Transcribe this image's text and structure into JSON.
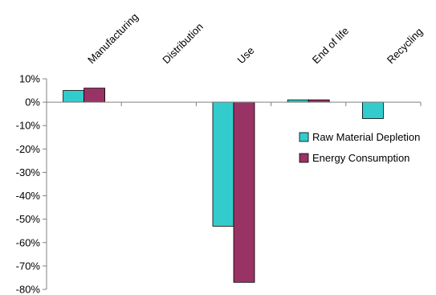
{
  "chart_data": {
    "type": "bar",
    "categories": [
      "Manufacturing",
      "Distribution",
      "Use",
      "End of life",
      "Recycling"
    ],
    "series": [
      {
        "name": "Raw Material Depletion",
        "color": "#33CCCC",
        "values": [
          5,
          0,
          -53,
          1,
          -7
        ]
      },
      {
        "name": "Energy Consumption",
        "color": "#993366",
        "values": [
          6,
          0,
          -77,
          1,
          0
        ]
      }
    ],
    "ylim": [
      -80,
      10
    ],
    "yticks": [
      "10%",
      "0%",
      "-10%",
      "-20%",
      "-30%",
      "-40%",
      "-50%",
      "-60%",
      "-70%",
      "-80%"
    ],
    "grid": false,
    "legend_position": "right"
  }
}
